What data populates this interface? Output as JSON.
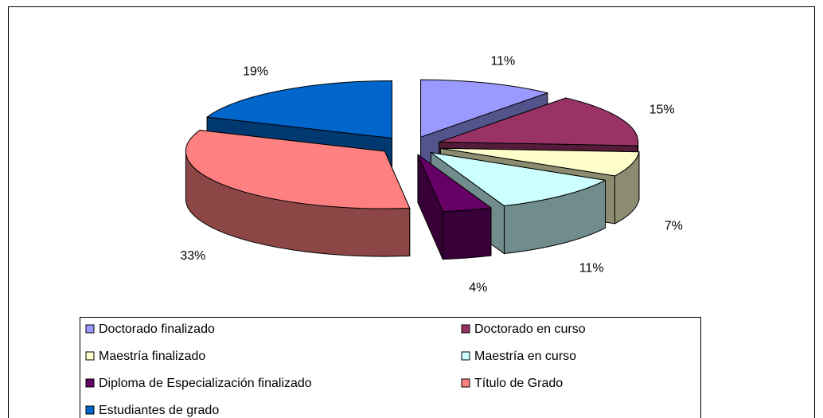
{
  "chart_data": {
    "type": "pie3d",
    "categories": [
      "Doctorado finalizado",
      "Doctorado en curso",
      "Maestría finalizado",
      "Maestría en curso",
      "Diploma de Especialización finalizado",
      "Título de Grado",
      "Estudiantes de grado"
    ],
    "values": [
      11,
      15,
      7,
      11,
      4,
      33,
      19
    ],
    "value_labels": [
      "11%",
      "15%",
      "7%",
      "11%",
      "4%",
      "33%",
      "19%"
    ],
    "colors": [
      "#9999ff",
      "#993366",
      "#ffffcc",
      "#ccffff",
      "#660066",
      "#ff8080",
      "#0066cc"
    ],
    "legend": "bottom"
  }
}
